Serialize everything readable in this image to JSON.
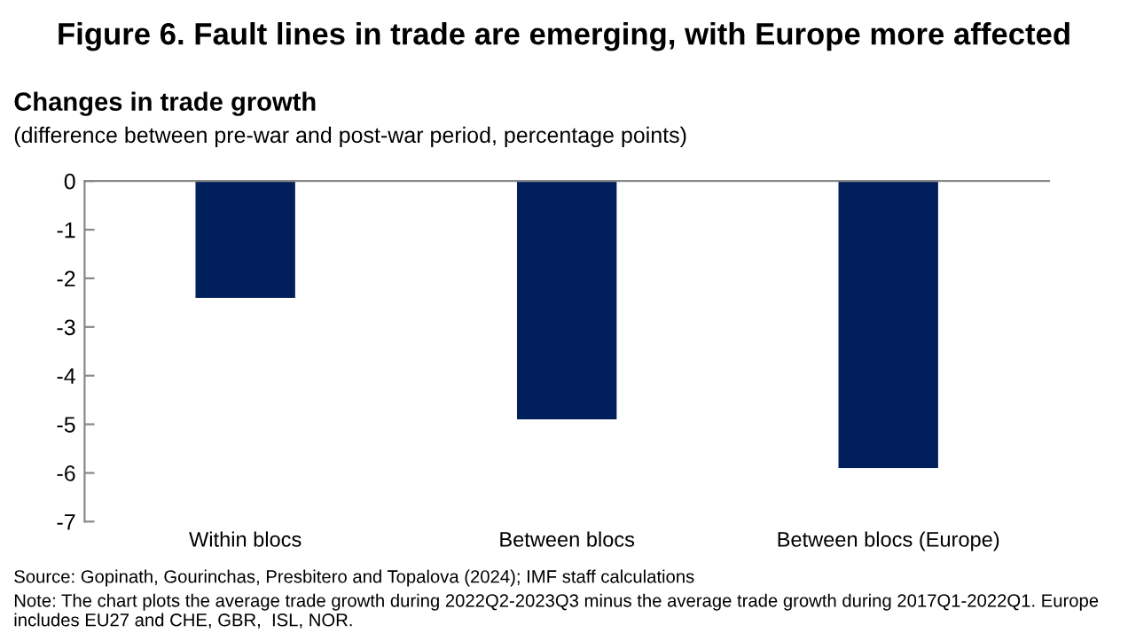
{
  "chart_data": {
    "type": "bar",
    "title": "Figure 6. Fault lines in trade are emerging, with Europe more affected",
    "subtitle": "Changes in trade growth",
    "ylabel": "(difference between pre-war and post-war period, percentage points)",
    "categories": [
      "Within blocs",
      "Between blocs",
      "Between blocs (Europe)"
    ],
    "values": [
      -2.4,
      -4.9,
      -5.9
    ],
    "color": "#001f5b",
    "ylim": [
      -7,
      0
    ],
    "yticks": [
      -7,
      -6,
      -5,
      -4,
      -3,
      -2,
      -1,
      0
    ],
    "grid": false,
    "legend": false,
    "annotations": [
      "Source: Gopinath, Gourinchas, Presbitero and Topalova (2024); IMF staff calculations",
      "Note: The chart plots the average trade growth during 2022Q2-2023Q3 minus the average trade growth during 2017Q1-2022Q1. Europe includes EU27 and CHE, GBR,  ISL, NOR."
    ]
  }
}
